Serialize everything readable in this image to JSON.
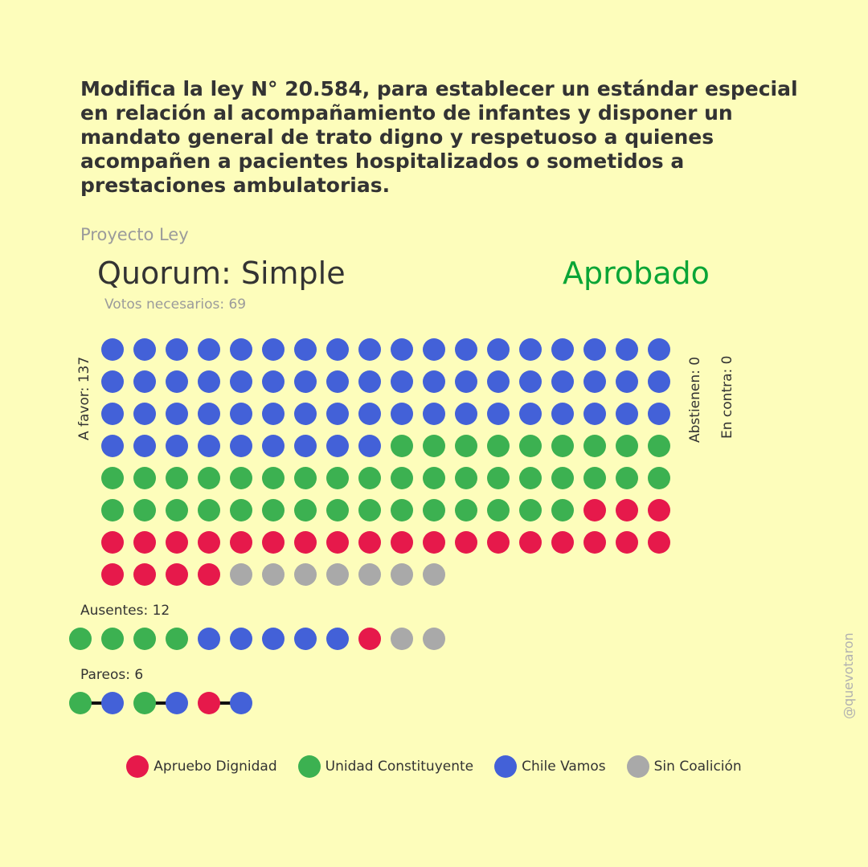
{
  "title": "Modifica la ley N° 20.584, para establecer un estándar especial en relación al acompañamiento de infantes y disponer un mandato general de trato digno y respetuoso a quienes acompañen a pacientes hospitalizados o sometidos a prestaciones ambulatorias.",
  "subtitle": "Proyecto Ley",
  "quorum_label": "Quorum: Simple",
  "result_label": "Aprobado",
  "result_color": "#0aa536",
  "votes_needed_label": "Votos necesarios: 69",
  "watermark": "@quevotaron",
  "colors": {
    "Apruebo Dignidad": "#e6194b",
    "Unidad Constituyente": "#3cb151",
    "Chile Vamos": "#4361d8",
    "Sin Coalición": "#a9a9a9"
  },
  "legend": [
    {
      "name": "Apruebo Dignidad",
      "color": "#e6194b"
    },
    {
      "name": "Unidad Constituyente",
      "color": "#3cb151"
    },
    {
      "name": "Chile Vamos",
      "color": "#4361d8"
    },
    {
      "name": "Sin Coalición",
      "color": "#a9a9a9"
    }
  ],
  "chart_data": {
    "type": "dot-matrix",
    "groups": [
      {
        "label": "A favor: 137",
        "total": 137,
        "counts": {
          "Chile Vamos": 63,
          "Unidad Constituyente": 42,
          "Apruebo Dignidad": 25,
          "Sin Coalición": 7
        }
      },
      {
        "label": "Abstienen: 0",
        "total": 0,
        "counts": {}
      },
      {
        "label": "En contra: 0",
        "total": 0,
        "counts": {}
      },
      {
        "label": "Ausentes: 12",
        "total": 12,
        "counts": {
          "Unidad Constituyente": 4,
          "Chile Vamos": 5,
          "Apruebo Dignidad": 1,
          "Sin Coalición": 2
        }
      },
      {
        "label": "Pareos: 6",
        "total": 6,
        "pairs": [
          [
            "Unidad Constituyente",
            "Chile Vamos"
          ],
          [
            "Unidad Constituyente",
            "Chile Vamos"
          ],
          [
            "Apruebo Dignidad",
            "Chile Vamos"
          ]
        ]
      }
    ]
  }
}
